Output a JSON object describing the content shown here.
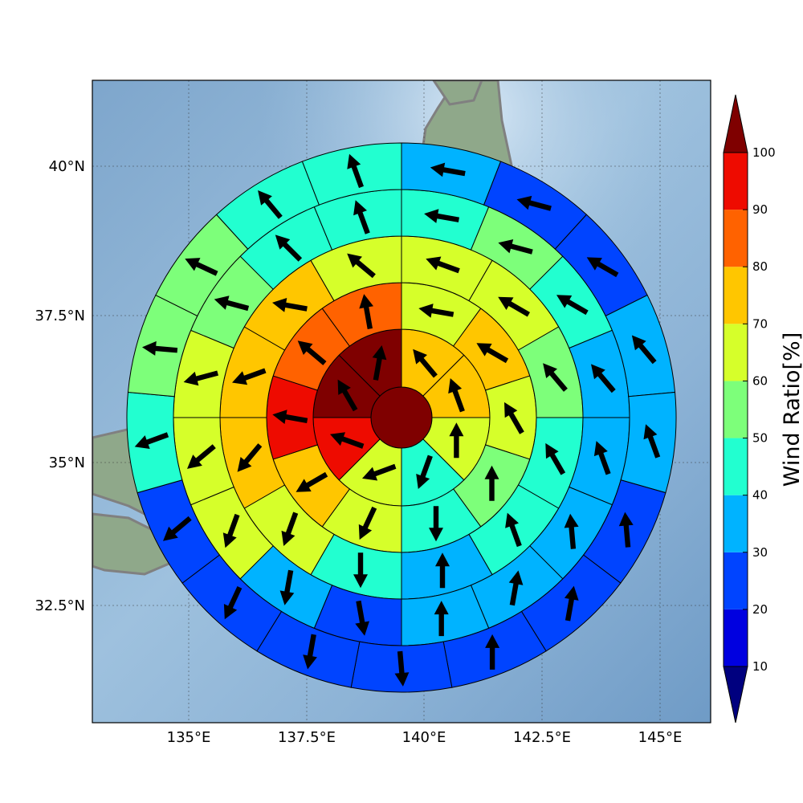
{
  "chart_data": {
    "type": "polar-sector-map",
    "colorbar": {
      "label": "Wind Ratio[%]",
      "ticks": [
        "10",
        "20",
        "30",
        "40",
        "50",
        "60",
        "70",
        "80",
        "90",
        "100"
      ],
      "extend": "both",
      "colors": [
        "#00007f",
        "#0000e0",
        "#0044ff",
        "#00b3ff",
        "#22ffd0",
        "#7dff7a",
        "#d6ff2a",
        "#ffc600",
        "#ff6200",
        "#ee0b00",
        "#7f0000"
      ]
    },
    "axes": {
      "x_ticks": [
        "135°E",
        "137.5°E",
        "140°E",
        "142.5°E",
        "145°E"
      ],
      "y_ticks": [
        "40°N",
        "37.5°N",
        "35°N",
        "32.5°N"
      ],
      "grid": true
    },
    "rings": [
      {
        "name": "ring-0",
        "values": [
          100
        ],
        "arrows": []
      },
      {
        "name": "ring-1",
        "values": [
          70,
          70,
          60,
          40,
          60,
          90,
          100,
          100
        ],
        "arrows": [
          320,
          340,
          0,
          200,
          250,
          290,
          330,
          10
        ]
      },
      {
        "name": "ring-2",
        "values": [
          60,
          70,
          60,
          50,
          40,
          60,
          70,
          90,
          80,
          80
        ],
        "arrows": [
          280,
          300,
          330,
          0,
          180,
          205,
          240,
          280,
          310,
          350
        ]
      },
      {
        "name": "ring-3",
        "values": [
          60,
          60,
          50,
          40,
          40,
          30,
          40,
          60,
          70,
          70,
          70,
          60
        ],
        "arrows": [
          290,
          300,
          320,
          330,
          340,
          0,
          180,
          200,
          220,
          250,
          280,
          310
        ]
      },
      {
        "name": "ring-4",
        "values": [
          40,
          50,
          40,
          30,
          30,
          30,
          30,
          30,
          20,
          30,
          60,
          60,
          60,
          50,
          40,
          40
        ],
        "arrows": [
          280,
          285,
          300,
          320,
          340,
          355,
          10,
          0,
          170,
          190,
          200,
          230,
          255,
          285,
          315,
          340
        ]
      },
      {
        "name": "ring-5",
        "values": [
          30,
          20,
          20,
          30,
          30,
          20,
          20,
          20,
          20,
          20,
          20,
          20,
          40,
          50,
          50,
          40,
          40
        ],
        "arrows": [
          280,
          285,
          300,
          320,
          340,
          355,
          10,
          0,
          175,
          190,
          205,
          230,
          250,
          275,
          295,
          320,
          340
        ]
      }
    ]
  }
}
